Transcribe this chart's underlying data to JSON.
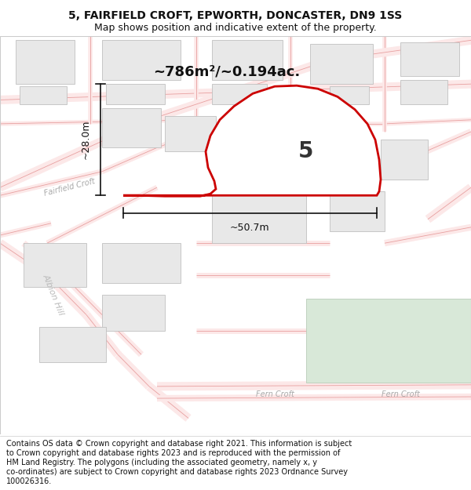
{
  "title_line1": "5, FAIRFIELD CROFT, EPWORTH, DONCASTER, DN9 1SS",
  "title_line2": "Map shows position and indicative extent of the property.",
  "footer_lines": [
    "Contains OS data © Crown copyright and database right 2021. This information is subject",
    "to Crown copyright and database rights 2023 and is reproduced with the permission of",
    "HM Land Registry. The polygons (including the associated geometry, namely x, y",
    "co-ordinates) are subject to Crown copyright and database rights 2023 Ordnance Survey",
    "100026316."
  ],
  "area_label": "~786m²/~0.194ac.",
  "width_label": "~50.7m",
  "height_label": "~28.0m",
  "plot_number": "5",
  "bg_color": "#ffffff",
  "road_fill": "#fce8e8",
  "road_edge": "#e8a0a0",
  "building_fill": "#e8e8e8",
  "building_edge": "#c0c0c0",
  "green_fill": "#d8e8d8",
  "green_edge": "#b8ccb8",
  "plot_color": "#cc0000",
  "dim_color": "#111111",
  "label_color": "#aaaaaa",
  "title_fontsize": 10,
  "subtitle_fontsize": 9,
  "footer_fontsize": 7.0
}
